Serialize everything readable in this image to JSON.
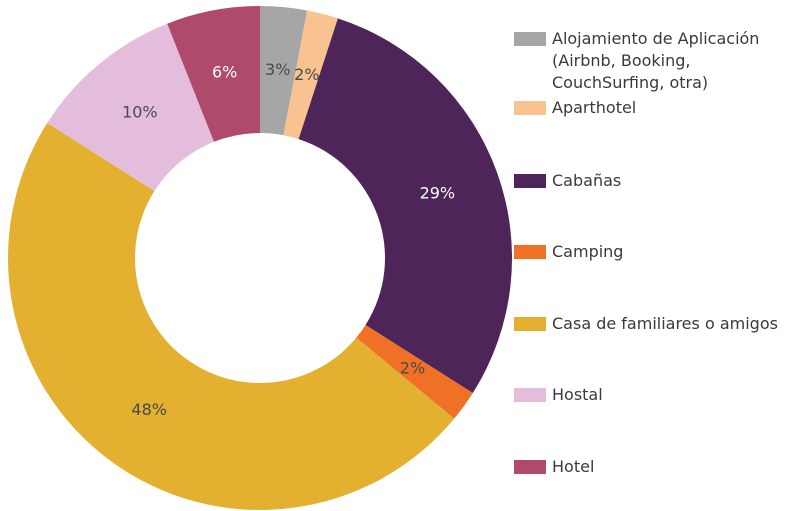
{
  "chart_data": {
    "type": "donut",
    "categories": [
      "Alojamiento de Aplicación (Airbnb, Booking, CouchSurfing, otra)",
      "Aparthotel",
      "Cabañas",
      "Camping",
      "Casa de familiares o amigos",
      "Hostal",
      "Hotel"
    ],
    "values": [
      3,
      2,
      29,
      2,
      48,
      10,
      6
    ],
    "value_labels": [
      "3%",
      "2%",
      "29%",
      "2%",
      "48%",
      "10%",
      "6%"
    ],
    "colors": [
      "#a6a6a6",
      "#f8c291",
      "#4e2558",
      "#f07025",
      "#e3b030",
      "#e4bcdc",
      "#b04a6a"
    ],
    "legend": "right"
  }
}
